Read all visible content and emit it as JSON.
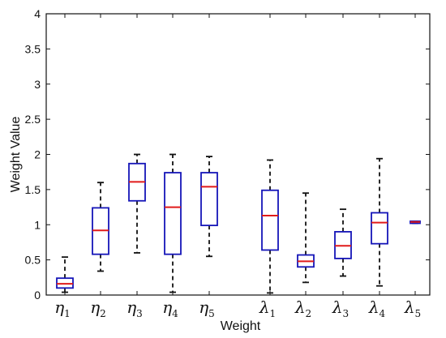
{
  "chart_data": {
    "type": "box",
    "title": "",
    "xlabel": "Weight",
    "ylabel": "Weight Value",
    "ylim": [
      0,
      4
    ],
    "yticks": [
      "0",
      "0.5",
      "1",
      "1.5",
      "2",
      "2.5",
      "3",
      "3.5",
      "4"
    ],
    "grid": false,
    "colors": {
      "box": "#1515b8",
      "median": "#e01a1a",
      "whisker": "#111111",
      "axis": "#111111"
    },
    "categories": [
      {
        "symbol": "η",
        "sub": "1",
        "min": 0.04,
        "q1": 0.1,
        "median": 0.16,
        "q3": 0.24,
        "max": 0.54
      },
      {
        "symbol": "η",
        "sub": "2",
        "min": 0.34,
        "q1": 0.58,
        "median": 0.92,
        "q3": 1.24,
        "max": 1.6
      },
      {
        "symbol": "η",
        "sub": "3",
        "min": 0.6,
        "q1": 1.34,
        "median": 1.61,
        "q3": 1.87,
        "max": 2.0
      },
      {
        "symbol": "η",
        "sub": "4",
        "min": 0.04,
        "q1": 0.58,
        "median": 1.25,
        "q3": 1.74,
        "max": 2.0
      },
      {
        "symbol": "η",
        "sub": "5",
        "min": 0.55,
        "q1": 0.99,
        "median": 1.54,
        "q3": 1.74,
        "max": 1.97
      },
      {
        "symbol": "λ",
        "sub": "1",
        "min": 0.03,
        "q1": 0.64,
        "median": 1.13,
        "q3": 1.49,
        "max": 1.92
      },
      {
        "symbol": "λ",
        "sub": "2",
        "min": 0.18,
        "q1": 0.4,
        "median": 0.48,
        "q3": 0.57,
        "max": 1.45
      },
      {
        "symbol": "λ",
        "sub": "3",
        "min": 0.27,
        "q1": 0.52,
        "median": 0.7,
        "q3": 0.9,
        "max": 1.22
      },
      {
        "symbol": "λ",
        "sub": "4",
        "min": 0.13,
        "q1": 0.73,
        "median": 1.03,
        "q3": 1.17,
        "max": 1.94
      },
      {
        "symbol": "λ",
        "sub": "5",
        "min": 1.02,
        "q1": 1.02,
        "median": 1.04,
        "q3": 1.05,
        "max": 1.05
      }
    ]
  }
}
